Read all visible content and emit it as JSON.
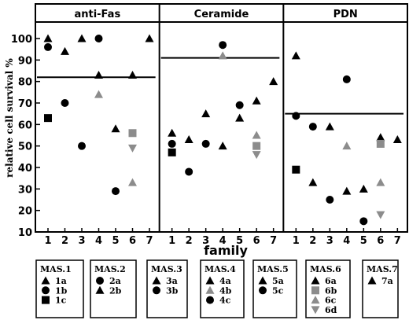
{
  "chart_data": {
    "type": "scatter",
    "ylabel": "relative cell  survival %",
    "xlabel": "family",
    "ylim": [
      10,
      108
    ],
    "yticks": [
      10,
      20,
      30,
      40,
      50,
      60,
      70,
      80,
      90,
      100
    ],
    "xticks": [
      "1",
      "2",
      "3",
      "4",
      "5",
      "6",
      "7"
    ],
    "colors": {
      "black": "#000000",
      "gray": "#8c8c8c"
    },
    "panels": [
      {
        "title": "anti-Fas",
        "reference_line": 82,
        "points": [
          {
            "x": 1,
            "y": 100,
            "marker": "triangle",
            "color": "black",
            "label": "1a"
          },
          {
            "x": 1,
            "y": 96,
            "marker": "circle",
            "color": "black",
            "label": "1b"
          },
          {
            "x": 1,
            "y": 63,
            "marker": "square",
            "color": "black",
            "label": "1c"
          },
          {
            "x": 2,
            "y": 70,
            "marker": "circle",
            "color": "black",
            "label": "2a"
          },
          {
            "x": 2,
            "y": 94,
            "marker": "triangle",
            "color": "black",
            "label": "2b"
          },
          {
            "x": 3,
            "y": 100,
            "marker": "triangle",
            "color": "black",
            "label": "3a"
          },
          {
            "x": 3,
            "y": 50,
            "marker": "circle",
            "color": "black",
            "label": "3b"
          },
          {
            "x": 4,
            "y": 83,
            "marker": "triangle",
            "color": "black",
            "label": "4a"
          },
          {
            "x": 4,
            "y": 74,
            "marker": "triangle",
            "color": "gray",
            "label": "4b"
          },
          {
            "x": 4,
            "y": 100,
            "marker": "circle",
            "color": "black",
            "label": "4c"
          },
          {
            "x": 5,
            "y": 58,
            "marker": "triangle",
            "color": "black",
            "label": "5a"
          },
          {
            "x": 5,
            "y": 29,
            "marker": "circle",
            "color": "black",
            "label": "5c"
          },
          {
            "x": 6,
            "y": 83,
            "marker": "triangle",
            "color": "black",
            "label": "6a"
          },
          {
            "x": 6,
            "y": 56,
            "marker": "square",
            "color": "gray",
            "label": "6b"
          },
          {
            "x": 6,
            "y": 33,
            "marker": "triangle",
            "color": "gray",
            "label": "6c"
          },
          {
            "x": 6,
            "y": 49,
            "marker": "triangle-down",
            "color": "gray",
            "label": "6d"
          },
          {
            "x": 7,
            "y": 100,
            "marker": "triangle",
            "color": "black",
            "label": "7a"
          }
        ]
      },
      {
        "title": "Ceramide",
        "reference_line": 91,
        "points": [
          {
            "x": 1,
            "y": 56,
            "marker": "triangle",
            "color": "black",
            "label": "1a"
          },
          {
            "x": 1,
            "y": 51,
            "marker": "circle",
            "color": "black",
            "label": "1b"
          },
          {
            "x": 1,
            "y": 47,
            "marker": "square",
            "color": "black",
            "label": "1c"
          },
          {
            "x": 2,
            "y": 38,
            "marker": "circle",
            "color": "black",
            "label": "2a"
          },
          {
            "x": 2,
            "y": 53,
            "marker": "triangle",
            "color": "black",
            "label": "2b"
          },
          {
            "x": 3,
            "y": 65,
            "marker": "triangle",
            "color": "black",
            "label": "3a"
          },
          {
            "x": 3,
            "y": 51,
            "marker": "circle",
            "color": "black",
            "label": "3b"
          },
          {
            "x": 4,
            "y": 50,
            "marker": "triangle",
            "color": "black",
            "label": "4a"
          },
          {
            "x": 4,
            "y": 92,
            "marker": "triangle",
            "color": "gray",
            "label": "4b"
          },
          {
            "x": 4,
            "y": 97,
            "marker": "circle",
            "color": "black",
            "label": "4c"
          },
          {
            "x": 5,
            "y": 63,
            "marker": "triangle",
            "color": "black",
            "label": "5a"
          },
          {
            "x": 5,
            "y": 69,
            "marker": "circle",
            "color": "black",
            "label": "5c"
          },
          {
            "x": 6,
            "y": 71,
            "marker": "triangle",
            "color": "black",
            "label": "6a"
          },
          {
            "x": 6,
            "y": 50,
            "marker": "square",
            "color": "gray",
            "label": "6b"
          },
          {
            "x": 6,
            "y": 55,
            "marker": "triangle",
            "color": "gray",
            "label": "6c"
          },
          {
            "x": 6,
            "y": 46,
            "marker": "triangle-down",
            "color": "gray",
            "label": "6d"
          },
          {
            "x": 7,
            "y": 80,
            "marker": "triangle",
            "color": "black",
            "label": "7a"
          }
        ]
      },
      {
        "title": "PDN",
        "reference_line": 65,
        "points": [
          {
            "x": 1,
            "y": 92,
            "marker": "triangle",
            "color": "black",
            "label": "1a"
          },
          {
            "x": 1,
            "y": 64,
            "marker": "circle",
            "color": "black",
            "label": "1b"
          },
          {
            "x": 1,
            "y": 39,
            "marker": "square",
            "color": "black",
            "label": "1c"
          },
          {
            "x": 2,
            "y": 59,
            "marker": "circle",
            "color": "black",
            "label": "2a"
          },
          {
            "x": 2,
            "y": 33,
            "marker": "triangle",
            "color": "black",
            "label": "2b"
          },
          {
            "x": 3,
            "y": 59,
            "marker": "triangle",
            "color": "black",
            "label": "3a"
          },
          {
            "x": 3,
            "y": 25,
            "marker": "circle",
            "color": "black",
            "label": "3b"
          },
          {
            "x": 4,
            "y": 29,
            "marker": "triangle",
            "color": "black",
            "label": "4a"
          },
          {
            "x": 4,
            "y": 50,
            "marker": "triangle",
            "color": "gray",
            "label": "4b"
          },
          {
            "x": 4,
            "y": 81,
            "marker": "circle",
            "color": "black",
            "label": "4c"
          },
          {
            "x": 5,
            "y": 30,
            "marker": "triangle",
            "color": "black",
            "label": "5a"
          },
          {
            "x": 5,
            "y": 15,
            "marker": "circle",
            "color": "black",
            "label": "5c"
          },
          {
            "x": 6,
            "y": 54,
            "marker": "triangle",
            "color": "black",
            "label": "6a"
          },
          {
            "x": 6,
            "y": 51,
            "marker": "square",
            "color": "gray",
            "label": "6b"
          },
          {
            "x": 6,
            "y": 33,
            "marker": "triangle",
            "color": "gray",
            "label": "6c"
          },
          {
            "x": 6,
            "y": 18,
            "marker": "triangle-down",
            "color": "gray",
            "label": "6d"
          },
          {
            "x": 7,
            "y": 53,
            "marker": "triangle",
            "color": "black",
            "label": "7a"
          }
        ]
      }
    ],
    "legend": [
      {
        "title": "MAS.1",
        "items": [
          {
            "marker": "triangle",
            "color": "black",
            "label": "1a"
          },
          {
            "marker": "circle",
            "color": "black",
            "label": "1b"
          },
          {
            "marker": "square",
            "color": "black",
            "label": "1c"
          }
        ]
      },
      {
        "title": "MAS.2",
        "items": [
          {
            "marker": "circle",
            "color": "black",
            "label": "2a"
          },
          {
            "marker": "triangle",
            "color": "black",
            "label": "2b"
          }
        ]
      },
      {
        "title": "MAS.3",
        "items": [
          {
            "marker": "triangle",
            "color": "black",
            "label": "3a"
          },
          {
            "marker": "circle",
            "color": "black",
            "label": "3b"
          }
        ]
      },
      {
        "title": "MAS.4",
        "items": [
          {
            "marker": "triangle",
            "color": "black",
            "label": "4a"
          },
          {
            "marker": "triangle",
            "color": "gray",
            "label": "4b"
          },
          {
            "marker": "circle",
            "color": "black",
            "label": "4c"
          }
        ]
      },
      {
        "title": "MAS.5",
        "items": [
          {
            "marker": "triangle",
            "color": "black",
            "label": "5a"
          },
          {
            "marker": "circle",
            "color": "black",
            "label": "5c"
          }
        ]
      },
      {
        "title": "MAS.6",
        "items": [
          {
            "marker": "triangle",
            "color": "black",
            "label": "6a"
          },
          {
            "marker": "square",
            "color": "gray",
            "label": "6b"
          },
          {
            "marker": "triangle",
            "color": "gray",
            "label": "6c"
          },
          {
            "marker": "triangle-down",
            "color": "gray",
            "label": "6d"
          }
        ]
      },
      {
        "title": "MAS.7",
        "items": [
          {
            "marker": "triangle",
            "color": "black",
            "label": "7a"
          }
        ]
      }
    ]
  }
}
